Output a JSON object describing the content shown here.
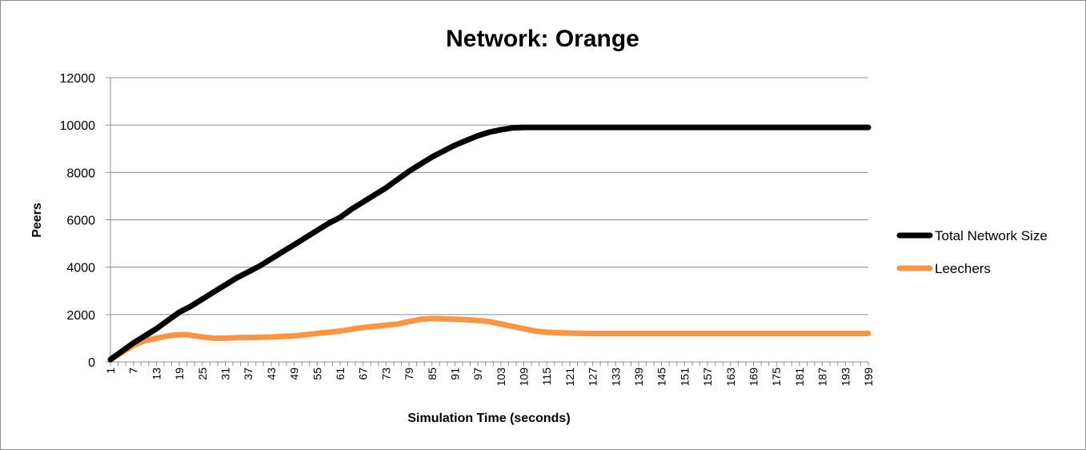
{
  "chart_data": {
    "type": "line",
    "title": "Network: Orange",
    "xlabel": "Simulation Time (seconds)",
    "ylabel": "Peers",
    "ylim": [
      0,
      12000
    ],
    "yticks": [
      0,
      2000,
      4000,
      6000,
      8000,
      10000,
      12000
    ],
    "xlim": [
      1,
      199
    ],
    "xticks": [
      1,
      7,
      13,
      19,
      25,
      31,
      37,
      43,
      49,
      55,
      61,
      67,
      73,
      79,
      85,
      91,
      97,
      103,
      109,
      115,
      121,
      127,
      133,
      139,
      145,
      151,
      157,
      163,
      169,
      175,
      181,
      187,
      193,
      199
    ],
    "grid": true,
    "legend_position": "right",
    "series": [
      {
        "name": "Total Network Size",
        "color": "#000000",
        "x": [
          1,
          4,
          7,
          10,
          13,
          16,
          19,
          22,
          25,
          28,
          31,
          34,
          37,
          40,
          43,
          46,
          49,
          52,
          55,
          58,
          61,
          64,
          67,
          70,
          73,
          76,
          79,
          82,
          85,
          88,
          91,
          94,
          97,
          100,
          103,
          106,
          109,
          112,
          199
        ],
        "values": [
          100,
          450,
          800,
          1100,
          1400,
          1750,
          2100,
          2350,
          2650,
          2950,
          3250,
          3550,
          3800,
          4050,
          4350,
          4650,
          4950,
          5250,
          5550,
          5850,
          6100,
          6450,
          6750,
          7050,
          7350,
          7700,
          8050,
          8350,
          8650,
          8900,
          9150,
          9350,
          9550,
          9700,
          9800,
          9880,
          9900,
          9900,
          9900
        ]
      },
      {
        "name": "Leechers",
        "color": "#f79646",
        "x": [
          1,
          4,
          7,
          10,
          13,
          16,
          19,
          21,
          25,
          28,
          31,
          34,
          37,
          40,
          43,
          46,
          49,
          52,
          55,
          58,
          61,
          64,
          67,
          70,
          73,
          76,
          79,
          82,
          85,
          88,
          91,
          94,
          97,
          100,
          103,
          106,
          109,
          112,
          115,
          120,
          125,
          199
        ],
        "values": [
          100,
          400,
          700,
          900,
          1000,
          1100,
          1150,
          1150,
          1050,
          1000,
          1000,
          1020,
          1030,
          1040,
          1050,
          1080,
          1100,
          1150,
          1200,
          1250,
          1300,
          1380,
          1450,
          1500,
          1550,
          1600,
          1700,
          1800,
          1830,
          1820,
          1800,
          1780,
          1750,
          1700,
          1600,
          1500,
          1400,
          1300,
          1250,
          1220,
          1200,
          1200
        ]
      }
    ]
  }
}
